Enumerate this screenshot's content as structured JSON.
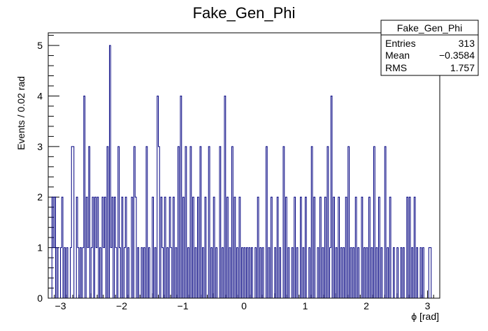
{
  "chart_data": {
    "type": "histogram",
    "title": "Fake_Gen_Phi",
    "xlabel": "ϕ [rad]",
    "ylabel": "Events / 0.02 rad",
    "xlim": [
      -3.2,
      3.2
    ],
    "ylim": [
      0,
      5.25
    ],
    "bin_width": 0.02,
    "x_major_ticks": [
      -3,
      -2,
      -1,
      0,
      1,
      2,
      3
    ],
    "x_tick_labels": [
      "−3",
      "−2",
      "−1",
      "0",
      "1",
      "2",
      "3"
    ],
    "y_major_ticks": [
      0,
      1,
      2,
      3,
      4,
      5
    ],
    "y_tick_labels": [
      "0",
      "1",
      "2",
      "3",
      "4",
      "5"
    ],
    "line_color": "#000080",
    "stats_box": {
      "title": "Fake_Gen_Phi",
      "rows": [
        {
          "label": "Entries",
          "value": "313"
        },
        {
          "label": "Mean",
          "value": "−0.3584"
        },
        {
          "label": "RMS",
          "value": "1.757"
        }
      ]
    },
    "bins": [
      {
        "x": -3.13,
        "y": 2
      },
      {
        "x": -3.11,
        "y": 1
      },
      {
        "x": -3.09,
        "y": 2
      },
      {
        "x": -3.05,
        "y": 1
      },
      {
        "x": -2.99,
        "y": 1
      },
      {
        "x": -2.97,
        "y": 2
      },
      {
        "x": -2.93,
        "y": 1
      },
      {
        "x": -2.89,
        "y": 1
      },
      {
        "x": -2.83,
        "y": 1
      },
      {
        "x": -2.81,
        "y": 3
      },
      {
        "x": -2.79,
        "y": 3
      },
      {
        "x": -2.73,
        "y": 2
      },
      {
        "x": -2.71,
        "y": 1
      },
      {
        "x": -2.67,
        "y": 1
      },
      {
        "x": -2.63,
        "y": 1
      },
      {
        "x": -2.61,
        "y": 4
      },
      {
        "x": -2.57,
        "y": 2
      },
      {
        "x": -2.55,
        "y": 1
      },
      {
        "x": -2.53,
        "y": 3
      },
      {
        "x": -2.49,
        "y": 1
      },
      {
        "x": -2.47,
        "y": 2
      },
      {
        "x": -2.43,
        "y": 2
      },
      {
        "x": -2.41,
        "y": 1
      },
      {
        "x": -2.39,
        "y": 2
      },
      {
        "x": -2.35,
        "y": 1
      },
      {
        "x": -2.31,
        "y": 2
      },
      {
        "x": -2.29,
        "y": 1
      },
      {
        "x": -2.27,
        "y": 2
      },
      {
        "x": -2.23,
        "y": 3
      },
      {
        "x": -2.19,
        "y": 5
      },
      {
        "x": -2.17,
        "y": 1
      },
      {
        "x": -2.15,
        "y": 2
      },
      {
        "x": -2.11,
        "y": 2
      },
      {
        "x": -2.09,
        "y": 1
      },
      {
        "x": -2.05,
        "y": 3
      },
      {
        "x": -2.03,
        "y": 1
      },
      {
        "x": -1.99,
        "y": 2
      },
      {
        "x": -1.95,
        "y": 1
      },
      {
        "x": -1.93,
        "y": 2
      },
      {
        "x": -1.89,
        "y": 1
      },
      {
        "x": -1.83,
        "y": 2
      },
      {
        "x": -1.79,
        "y": 3
      },
      {
        "x": -1.77,
        "y": 2
      },
      {
        "x": -1.73,
        "y": 1
      },
      {
        "x": -1.67,
        "y": 1
      },
      {
        "x": -1.63,
        "y": 1
      },
      {
        "x": -1.59,
        "y": 3
      },
      {
        "x": -1.55,
        "y": 1
      },
      {
        "x": -1.49,
        "y": 2
      },
      {
        "x": -1.45,
        "y": 1
      },
      {
        "x": -1.41,
        "y": 4
      },
      {
        "x": -1.39,
        "y": 3
      },
      {
        "x": -1.35,
        "y": 2
      },
      {
        "x": -1.33,
        "y": 1
      },
      {
        "x": -1.29,
        "y": 2
      },
      {
        "x": -1.25,
        "y": 1
      },
      {
        "x": -1.21,
        "y": 2
      },
      {
        "x": -1.19,
        "y": 1
      },
      {
        "x": -1.15,
        "y": 2
      },
      {
        "x": -1.11,
        "y": 1
      },
      {
        "x": -1.07,
        "y": 3
      },
      {
        "x": -1.03,
        "y": 4
      },
      {
        "x": -0.99,
        "y": 2
      },
      {
        "x": -0.95,
        "y": 3
      },
      {
        "x": -0.91,
        "y": 1
      },
      {
        "x": -0.87,
        "y": 3
      },
      {
        "x": -0.83,
        "y": 2
      },
      {
        "x": -0.79,
        "y": 1
      },
      {
        "x": -0.75,
        "y": 2
      },
      {
        "x": -0.71,
        "y": 3
      },
      {
        "x": -0.67,
        "y": 1
      },
      {
        "x": -0.63,
        "y": 2
      },
      {
        "x": -0.57,
        "y": 3
      },
      {
        "x": -0.53,
        "y": 1
      },
      {
        "x": -0.49,
        "y": 2
      },
      {
        "x": -0.45,
        "y": 1
      },
      {
        "x": -0.39,
        "y": 3
      },
      {
        "x": -0.35,
        "y": 1
      },
      {
        "x": -0.31,
        "y": 4
      },
      {
        "x": -0.27,
        "y": 2
      },
      {
        "x": -0.23,
        "y": 1
      },
      {
        "x": -0.19,
        "y": 3
      },
      {
        "x": -0.15,
        "y": 2
      },
      {
        "x": -0.11,
        "y": 1
      },
      {
        "x": -0.07,
        "y": 2
      },
      {
        "x": -0.03,
        "y": 1
      },
      {
        "x": 0.01,
        "y": 1
      },
      {
        "x": 0.05,
        "y": 1
      },
      {
        "x": 0.09,
        "y": 1
      },
      {
        "x": 0.13,
        "y": 1
      },
      {
        "x": 0.19,
        "y": 1
      },
      {
        "x": 0.23,
        "y": 2
      },
      {
        "x": 0.27,
        "y": 1
      },
      {
        "x": 0.31,
        "y": 1
      },
      {
        "x": 0.37,
        "y": 3
      },
      {
        "x": 0.41,
        "y": 1
      },
      {
        "x": 0.45,
        "y": 2
      },
      {
        "x": 0.51,
        "y": 1
      },
      {
        "x": 0.55,
        "y": 2
      },
      {
        "x": 0.59,
        "y": 1
      },
      {
        "x": 0.65,
        "y": 3
      },
      {
        "x": 0.69,
        "y": 2
      },
      {
        "x": 0.73,
        "y": 1
      },
      {
        "x": 0.79,
        "y": 1
      },
      {
        "x": 0.83,
        "y": 2
      },
      {
        "x": 0.87,
        "y": 1
      },
      {
        "x": 0.93,
        "y": 2
      },
      {
        "x": 0.97,
        "y": 1
      },
      {
        "x": 1.01,
        "y": 2
      },
      {
        "x": 1.07,
        "y": 1
      },
      {
        "x": 1.11,
        "y": 3
      },
      {
        "x": 1.15,
        "y": 2
      },
      {
        "x": 1.21,
        "y": 1
      },
      {
        "x": 1.25,
        "y": 2
      },
      {
        "x": 1.29,
        "y": 1
      },
      {
        "x": 1.33,
        "y": 2
      },
      {
        "x": 1.37,
        "y": 3
      },
      {
        "x": 1.41,
        "y": 1
      },
      {
        "x": 1.43,
        "y": 4
      },
      {
        "x": 1.47,
        "y": 2
      },
      {
        "x": 1.51,
        "y": 1
      },
      {
        "x": 1.55,
        "y": 2
      },
      {
        "x": 1.59,
        "y": 1
      },
      {
        "x": 1.63,
        "y": 1
      },
      {
        "x": 1.67,
        "y": 2
      },
      {
        "x": 1.71,
        "y": 3
      },
      {
        "x": 1.75,
        "y": 1
      },
      {
        "x": 1.79,
        "y": 1
      },
      {
        "x": 1.83,
        "y": 2
      },
      {
        "x": 1.87,
        "y": 1
      },
      {
        "x": 1.93,
        "y": 2
      },
      {
        "x": 1.97,
        "y": 1
      },
      {
        "x": 2.01,
        "y": 1
      },
      {
        "x": 2.05,
        "y": 2
      },
      {
        "x": 2.09,
        "y": 1
      },
      {
        "x": 2.13,
        "y": 3
      },
      {
        "x": 2.17,
        "y": 1
      },
      {
        "x": 2.21,
        "y": 2
      },
      {
        "x": 2.25,
        "y": 1
      },
      {
        "x": 2.31,
        "y": 3
      },
      {
        "x": 2.35,
        "y": 1
      },
      {
        "x": 2.39,
        "y": 2
      },
      {
        "x": 2.45,
        "y": 1
      },
      {
        "x": 2.51,
        "y": 1
      },
      {
        "x": 2.57,
        "y": 1
      },
      {
        "x": 2.61,
        "y": 1
      },
      {
        "x": 2.67,
        "y": 2
      },
      {
        "x": 2.71,
        "y": 2
      },
      {
        "x": 2.75,
        "y": 1
      },
      {
        "x": 2.79,
        "y": 2
      },
      {
        "x": 2.83,
        "y": 1
      },
      {
        "x": 2.89,
        "y": 1
      },
      {
        "x": 2.93,
        "y": 1
      },
      {
        "x": 3.03,
        "y": 1
      },
      {
        "x": 3.05,
        "y": 1
      }
    ]
  }
}
